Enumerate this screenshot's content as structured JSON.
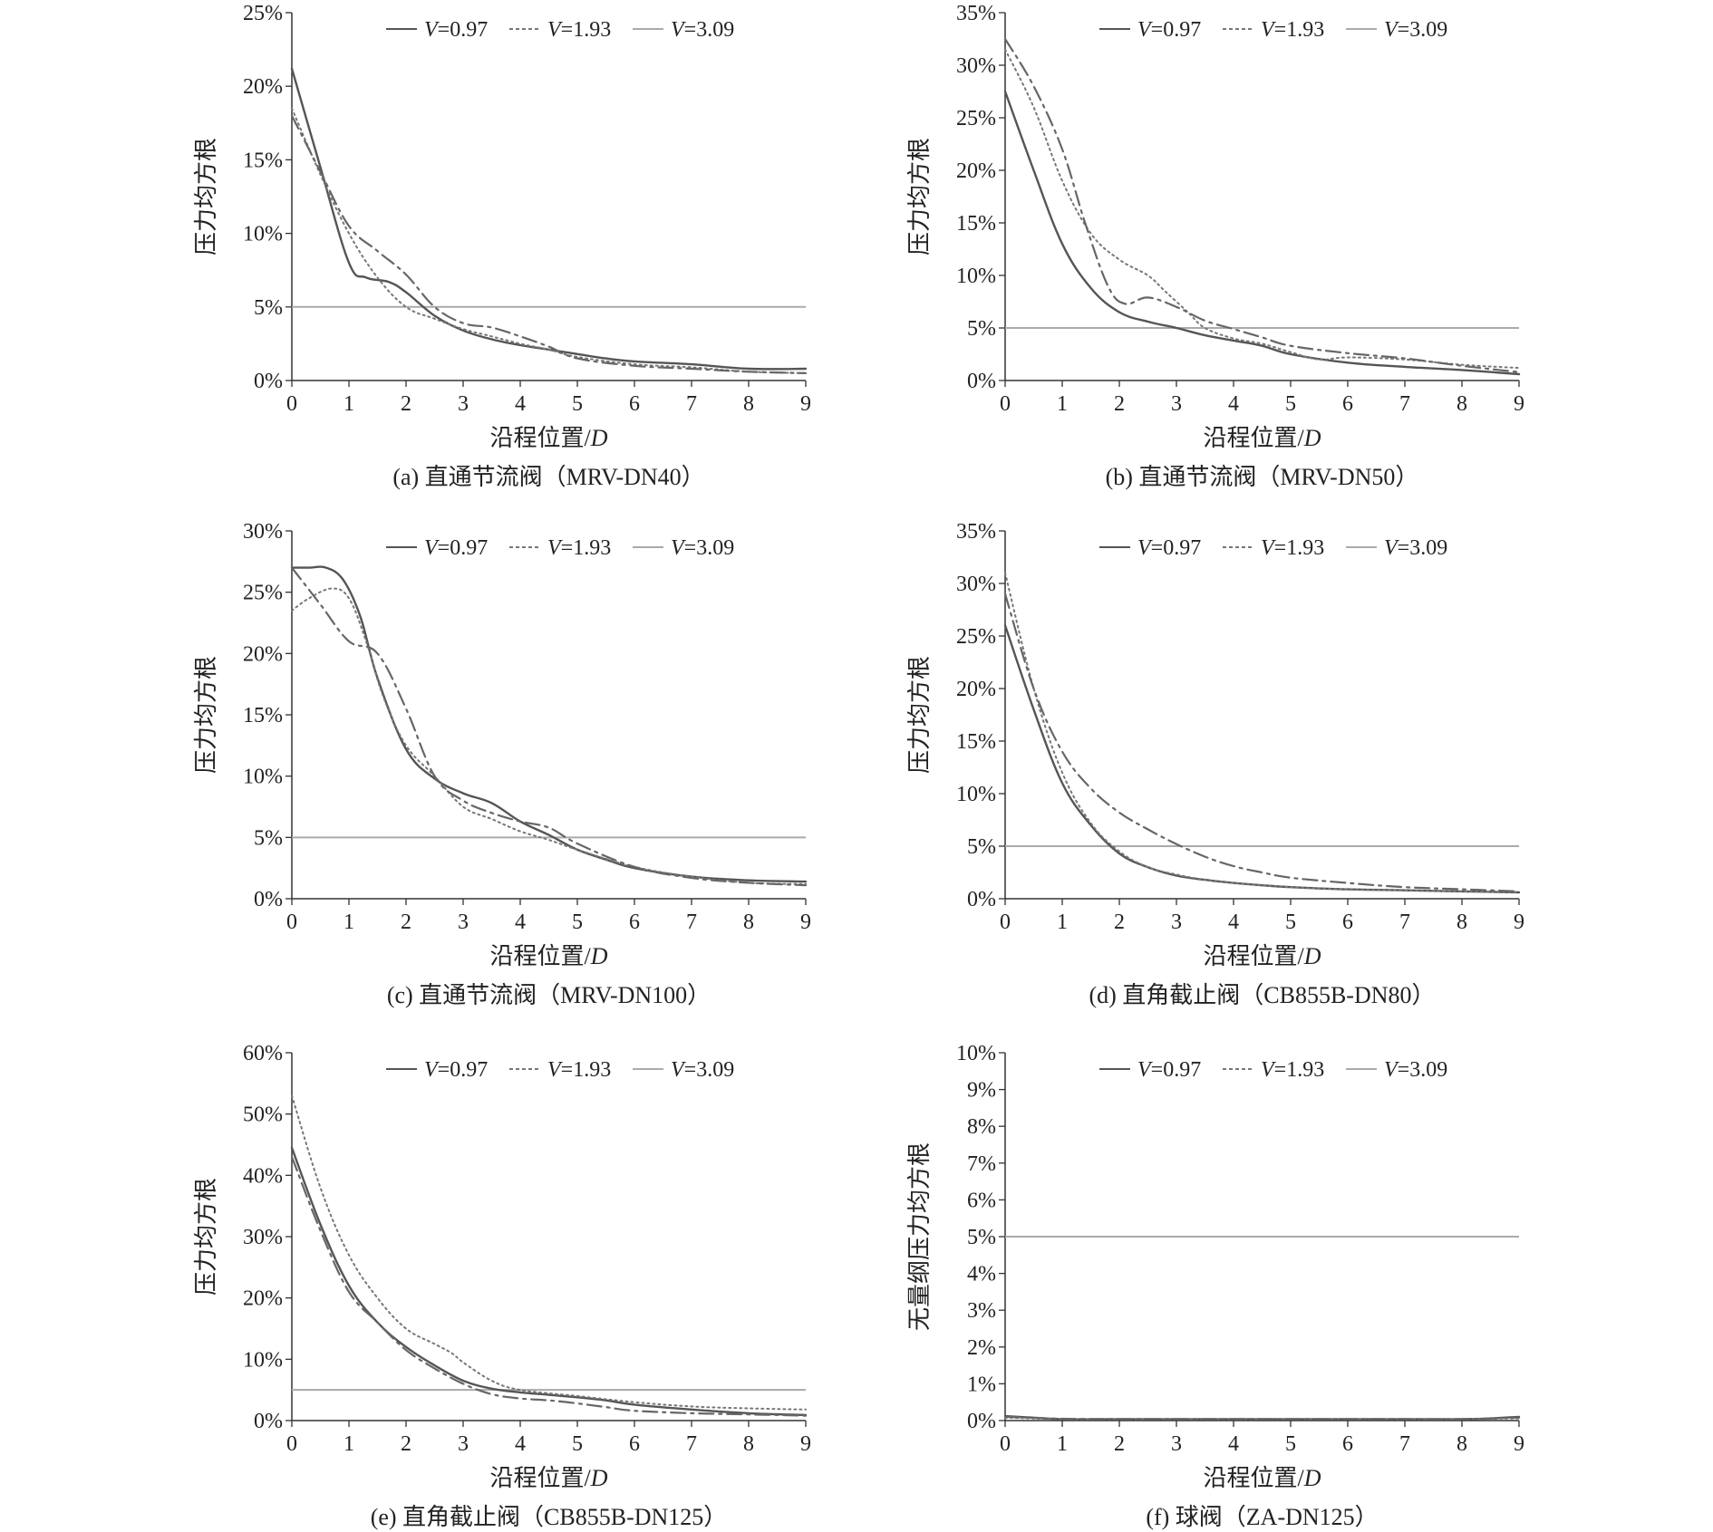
{
  "figure": {
    "x_label_prefix": "沿程位置/",
    "x_label_var": "D"
  },
  "legend": [
    {
      "var": "V",
      "value": "=0.97"
    },
    {
      "var": "V",
      "value": "=1.93"
    },
    {
      "var": "V",
      "value": "=3.09"
    }
  ],
  "colors": {
    "series_v097": "#555555",
    "series_v193": "#777777",
    "series_v309": "#666666",
    "threshold": "#aaaaaa",
    "axis": "#333333"
  },
  "chart_data": [
    {
      "type": "line",
      "caption": "(a) 直通节流阀（MRV-DN40）",
      "ylabel": "压力均方根",
      "yticks": [
        "0%",
        "5%",
        "10%",
        "15%",
        "20%",
        "25%"
      ],
      "ylim": [
        0,
        25
      ],
      "xticks": [
        "0",
        "1",
        "2",
        "3",
        "4",
        "5",
        "6",
        "7",
        "8",
        "9"
      ],
      "xlim": [
        0,
        9
      ],
      "threshold": 5,
      "series": [
        {
          "name": "V=0.97",
          "style": "solid",
          "x": [
            0,
            0.5,
            1,
            1.3,
            1.7,
            2,
            2.5,
            3,
            3.5,
            4,
            4.5,
            5,
            5.5,
            6,
            7,
            8,
            9
          ],
          "y": [
            21.2,
            14.5,
            8,
            7,
            6.7,
            6,
            4.4,
            3.4,
            2.8,
            2.4,
            2.1,
            1.8,
            1.5,
            1.3,
            1.1,
            0.8,
            0.8
          ]
        },
        {
          "name": "V=1.93",
          "style": "dotted",
          "x": [
            0,
            0.5,
            1,
            1.5,
            2,
            2.5,
            3,
            3.5,
            4,
            4.5,
            5,
            6,
            7,
            8,
            9
          ],
          "y": [
            18.5,
            14,
            10,
            7,
            5,
            4.2,
            3.5,
            3,
            2.5,
            2.1,
            1.6,
            1.1,
            0.9,
            0.6,
            0.5
          ]
        },
        {
          "name": "V=3.09",
          "style": "dashdot",
          "x": [
            0,
            0.5,
            1,
            1.5,
            2,
            2.5,
            3,
            3.5,
            4,
            4.5,
            5,
            6,
            7,
            8,
            9
          ],
          "y": [
            18,
            14.2,
            10.5,
            8.8,
            7.2,
            5,
            3.9,
            3.6,
            3,
            2.3,
            1.5,
            1,
            0.8,
            0.6,
            0.5
          ]
        }
      ]
    },
    {
      "type": "line",
      "caption": "(b) 直通节流阀（MRV-DN50）",
      "ylabel": "压力均方根",
      "yticks": [
        "0%",
        "5%",
        "10%",
        "15%",
        "20%",
        "25%",
        "30%",
        "35%"
      ],
      "ylim": [
        0,
        35
      ],
      "xticks": [
        "0",
        "1",
        "2",
        "3",
        "4",
        "5",
        "6",
        "7",
        "8",
        "9"
      ],
      "xlim": [
        0,
        9
      ],
      "threshold": 5,
      "series": [
        {
          "name": "V=0.97",
          "style": "solid",
          "x": [
            0,
            0.5,
            1,
            1.5,
            2,
            2.5,
            3,
            3.5,
            4,
            4.5,
            5,
            6,
            7,
            8,
            9
          ],
          "y": [
            27.5,
            20,
            13,
            8.8,
            6.5,
            5.6,
            5,
            4.3,
            3.8,
            3.3,
            2.5,
            1.7,
            1.3,
            1,
            0.6
          ]
        },
        {
          "name": "V=1.93",
          "style": "dotted",
          "x": [
            0,
            0.5,
            1,
            1.5,
            2,
            2.5,
            2.8,
            3.2,
            3.5,
            4,
            4.5,
            5,
            5.5,
            6,
            7,
            8,
            9
          ],
          "y": [
            31.5,
            26,
            19,
            14,
            11.5,
            10,
            8.5,
            6.5,
            5,
            4,
            3.5,
            2.7,
            2,
            2.2,
            2,
            1.5,
            1.2
          ]
        },
        {
          "name": "V=3.09",
          "style": "dashdot",
          "x": [
            0,
            0.5,
            1,
            1.4,
            1.8,
            2.1,
            2.5,
            3,
            3.5,
            4,
            4.5,
            5,
            6,
            7,
            8,
            9
          ],
          "y": [
            32.5,
            28,
            22,
            15,
            9,
            7.3,
            7.9,
            7,
            5.7,
            4.9,
            4.1,
            3.3,
            2.6,
            2.1,
            1.4,
            0.8
          ]
        }
      ]
    },
    {
      "type": "line",
      "caption": "(c) 直通节流阀（MRV-DN100）",
      "ylabel": "压力均方根",
      "yticks": [
        "0%",
        "5%",
        "10%",
        "15%",
        "20%",
        "25%",
        "30%"
      ],
      "ylim": [
        0,
        30
      ],
      "xticks": [
        "0",
        "1",
        "2",
        "3",
        "4",
        "5",
        "6",
        "7",
        "8",
        "9"
      ],
      "xlim": [
        0,
        9
      ],
      "threshold": 5,
      "series": [
        {
          "name": "V=0.97",
          "style": "solid",
          "x": [
            0,
            0.3,
            0.6,
            0.9,
            1.2,
            1.5,
            2,
            2.5,
            3,
            3.5,
            4,
            4.5,
            5,
            5.5,
            6,
            7,
            8,
            9
          ],
          "y": [
            27,
            27,
            27,
            26,
            23,
            18,
            12.2,
            9.8,
            8.6,
            7.8,
            6.3,
            5.2,
            4,
            3.2,
            2.5,
            1.8,
            1.5,
            1.4
          ]
        },
        {
          "name": "V=1.93",
          "style": "dotted",
          "x": [
            0,
            0.3,
            0.7,
            1,
            1.3,
            1.6,
            2,
            2.5,
            3,
            3.5,
            4,
            4.5,
            5,
            6,
            7,
            8,
            9
          ],
          "y": [
            23.5,
            24.5,
            25.3,
            24.5,
            21,
            16.5,
            12.5,
            10,
            7.5,
            6.5,
            5.5,
            4.8,
            4,
            2.6,
            1.8,
            1.3,
            1.2
          ]
        },
        {
          "name": "V=3.09",
          "style": "dashdot",
          "x": [
            0,
            0.5,
            1,
            1.5,
            2,
            2.5,
            3,
            3.5,
            4,
            4.5,
            5,
            6,
            7,
            8,
            9
          ],
          "y": [
            27,
            24,
            21,
            20,
            15.5,
            10,
            8,
            7,
            6.3,
            5.8,
            4.5,
            2.6,
            1.7,
            1.3,
            1.1
          ]
        }
      ]
    },
    {
      "type": "line",
      "caption": "(d) 直角截止阀（CB855B-DN80）",
      "ylabel": "压力均方根",
      "yticks": [
        "0%",
        "5%",
        "10%",
        "15%",
        "20%",
        "25%",
        "30%",
        "35%"
      ],
      "ylim": [
        0,
        35
      ],
      "xticks": [
        "0",
        "1",
        "2",
        "3",
        "4",
        "5",
        "6",
        "7",
        "8",
        "9"
      ],
      "xlim": [
        0,
        9
      ],
      "threshold": 5,
      "series": [
        {
          "name": "V=0.97",
          "style": "solid",
          "x": [
            0,
            0.5,
            1,
            1.5,
            2,
            2.5,
            3,
            3.5,
            4,
            5,
            6,
            7,
            8,
            9
          ],
          "y": [
            26,
            18,
            11,
            7,
            4.3,
            3,
            2.2,
            1.8,
            1.5,
            1.1,
            0.9,
            0.8,
            0.7,
            0.6
          ]
        },
        {
          "name": "V=1.93",
          "style": "dotted",
          "x": [
            0,
            0.5,
            1,
            1.5,
            2,
            2.5,
            3,
            3.5,
            4,
            5,
            6,
            7,
            8,
            9
          ],
          "y": [
            31,
            20,
            12,
            7.2,
            4.5,
            3,
            2.3,
            1.8,
            1.5,
            1.1,
            0.9,
            0.8,
            0.7,
            0.6
          ]
        },
        {
          "name": "V=3.09",
          "style": "dashdot",
          "x": [
            0,
            0.5,
            1,
            1.5,
            2,
            2.5,
            3,
            3.5,
            4,
            4.5,
            5,
            6,
            7,
            8,
            9
          ],
          "y": [
            29,
            20,
            14,
            10.5,
            8.2,
            6.6,
            5.2,
            4,
            3.1,
            2.5,
            2,
            1.5,
            1.1,
            0.9,
            0.7
          ]
        }
      ]
    },
    {
      "type": "line",
      "caption": "(e) 直角截止阀（CB855B-DN125）",
      "ylabel": "压力均方根",
      "yticks": [
        "0%",
        "10%",
        "20%",
        "30%",
        "40%",
        "50%",
        "60%"
      ],
      "ylim": [
        0,
        60
      ],
      "xticks": [
        "0",
        "1",
        "2",
        "3",
        "4",
        "5",
        "6",
        "7",
        "8",
        "9"
      ],
      "xlim": [
        0,
        9
      ],
      "threshold": 5,
      "series": [
        {
          "name": "V=0.97",
          "style": "solid",
          "x": [
            0,
            0.5,
            1,
            1.5,
            2,
            2.5,
            3,
            3.5,
            4,
            4.5,
            5,
            5.5,
            6,
            7,
            8,
            9
          ],
          "y": [
            44.5,
            32,
            22,
            16,
            12,
            9,
            6.5,
            5.2,
            4.6,
            4.2,
            3.8,
            3.3,
            2.6,
            1.8,
            1.2,
            0.9
          ]
        },
        {
          "name": "V=1.93",
          "style": "dotted",
          "x": [
            0,
            0.5,
            1,
            1.5,
            2,
            2.5,
            2.8,
            3,
            3.5,
            4,
            5,
            6,
            7,
            8,
            9
          ],
          "y": [
            53,
            38,
            27,
            20,
            15,
            12.5,
            11,
            9.5,
            6.5,
            5,
            4,
            3,
            2.3,
            2,
            1.8
          ]
        },
        {
          "name": "V=3.09",
          "style": "dashdot",
          "x": [
            0,
            0.5,
            1,
            1.5,
            2,
            2.5,
            3,
            3.5,
            4,
            4.5,
            5,
            5.5,
            6,
            7,
            8,
            9
          ],
          "y": [
            43,
            31,
            21,
            16,
            11.5,
            8.5,
            6,
            4.3,
            3.6,
            3.3,
            2.8,
            2.2,
            1.6,
            1.2,
            1,
            0.8
          ]
        }
      ]
    },
    {
      "type": "line",
      "caption": "(f) 球阀（ZA-DN125）",
      "ylabel": "无量纲压力均方根",
      "yticks": [
        "0%",
        "1%",
        "2%",
        "3%",
        "4%",
        "5%",
        "6%",
        "7%",
        "8%",
        "9%",
        "10%"
      ],
      "ylim": [
        0,
        10
      ],
      "xticks": [
        "0",
        "1",
        "2",
        "3",
        "4",
        "5",
        "6",
        "7",
        "8",
        "9"
      ],
      "xlim": [
        0,
        9
      ],
      "threshold": 5,
      "series": [
        {
          "name": "V=0.97",
          "style": "solid",
          "x": [
            0,
            0.5,
            1,
            2,
            3,
            4,
            5,
            6,
            7,
            8,
            8.5,
            9
          ],
          "y": [
            0.12,
            0.08,
            0.04,
            0.04,
            0.04,
            0.04,
            0.04,
            0.04,
            0.04,
            0.04,
            0.06,
            0.1
          ]
        },
        {
          "name": "V=1.93",
          "style": "dotted",
          "x": [
            0,
            1,
            2,
            3,
            4,
            5,
            6,
            7,
            8,
            9
          ],
          "y": [
            0.08,
            0.04,
            0.04,
            0.04,
            0.04,
            0.04,
            0.04,
            0.04,
            0.04,
            0.06
          ]
        },
        {
          "name": "V=3.09",
          "style": "dashdot",
          "x": [
            0,
            1,
            2,
            3,
            4,
            5,
            6,
            7,
            8,
            9
          ],
          "y": [
            0.1,
            0.05,
            0.04,
            0.04,
            0.04,
            0.04,
            0.04,
            0.04,
            0.04,
            0.08
          ]
        }
      ]
    }
  ]
}
